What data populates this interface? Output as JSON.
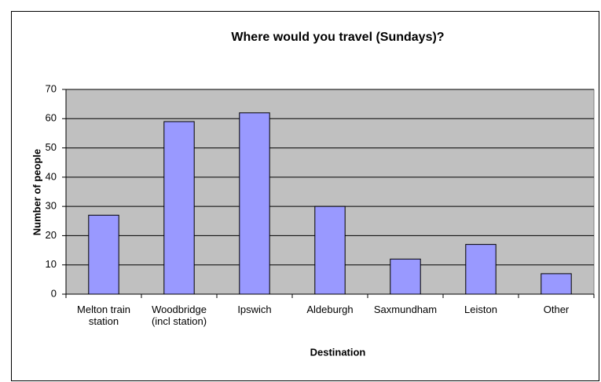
{
  "chart_data": {
    "type": "bar",
    "title": "Where would you travel (Sundays)?",
    "x_label": "Destination",
    "y_label": "Number of people",
    "categories": [
      "Melton train station",
      "Woodbridge (incl station)",
      "Ipswich",
      "Aldeburgh",
      "Saxmundham",
      "Leiston",
      "Other"
    ],
    "values": [
      27,
      59,
      62,
      30,
      12,
      17,
      7
    ],
    "color": "#9999ff",
    "ylim": [
      0,
      70
    ],
    "yticks": [
      0,
      10,
      20,
      30,
      40,
      50,
      60,
      70
    ],
    "grid": true
  }
}
